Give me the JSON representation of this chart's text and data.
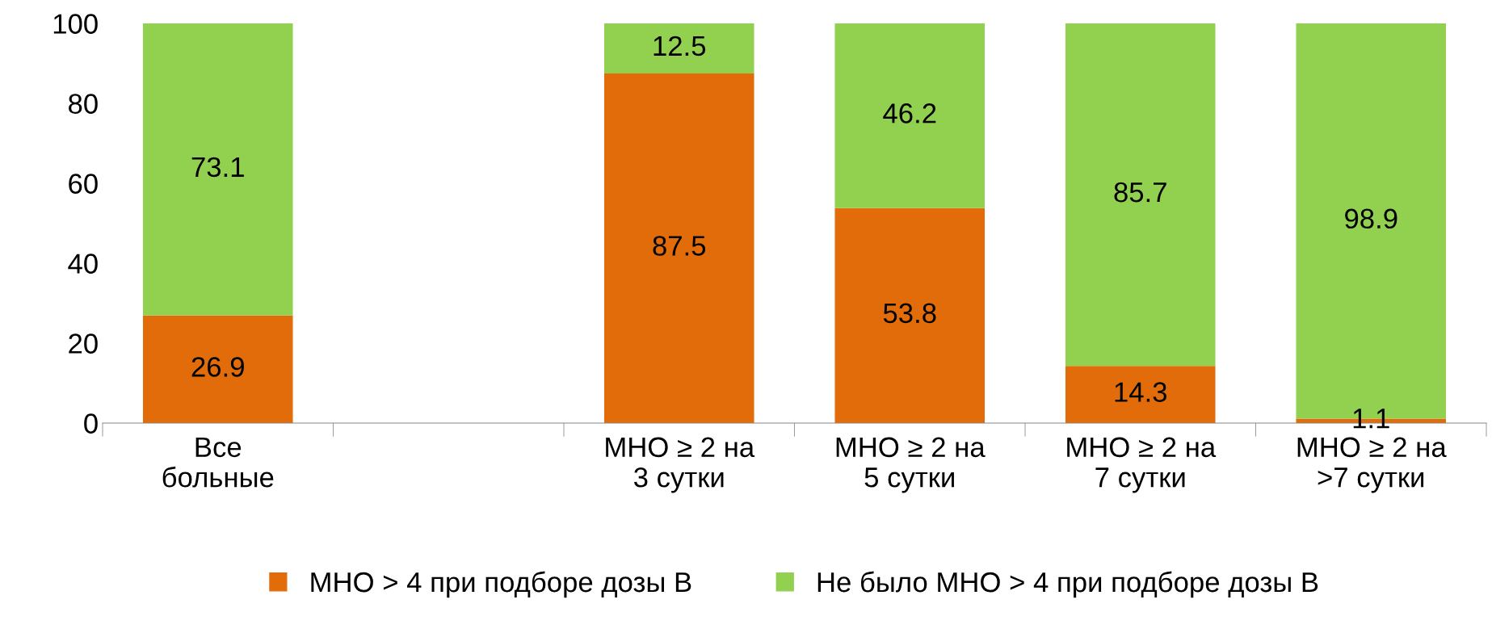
{
  "chart_data": {
    "type": "bar",
    "stacked": true,
    "categories": [
      "Все\nбольные",
      null,
      "МНО ≥ 2 на\n3 сутки",
      "МНО ≥ 2 на\n5 сутки",
      "МНО ≥ 2 на\n7 сутки",
      "МНО ≥ 2 на\n>7 сутки"
    ],
    "series": [
      {
        "name": "МНО > 4 при подборе дозы В",
        "color": "#e36c0a",
        "values": [
          26.9,
          null,
          87.5,
          53.8,
          14.3,
          1.1
        ]
      },
      {
        "name": "Не было МНО > 4 при подборе дозы В",
        "color": "#92d050",
        "values": [
          73.1,
          null,
          12.5,
          46.2,
          85.7,
          98.9
        ]
      }
    ],
    "ylim": [
      0,
      100
    ],
    "yticks": [
      0,
      20,
      40,
      60,
      80,
      100
    ],
    "data_labels": true,
    "grid": false,
    "legend": "bottom"
  }
}
